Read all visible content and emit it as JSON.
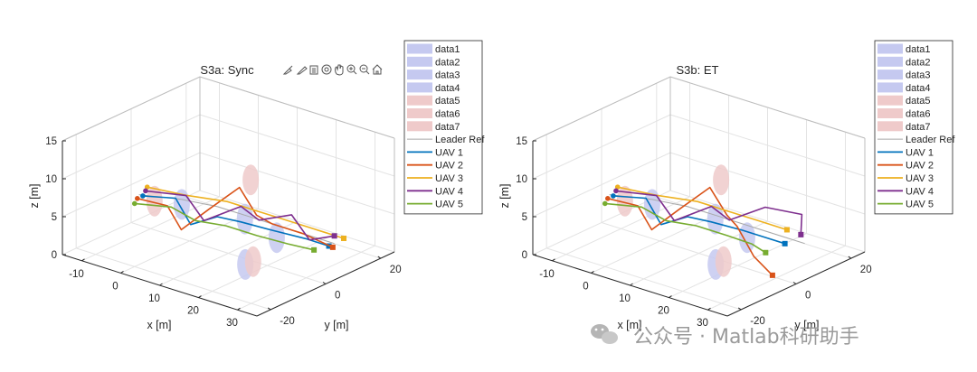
{
  "chart_data": [
    {
      "type": "line3d",
      "title": "S3a: Sync",
      "xlabel": "x [m]",
      "ylabel": "y [m]",
      "zlabel": "z [m]",
      "xlim": [
        -15,
        35
      ],
      "ylim": [
        -25,
        25
      ],
      "zlim": [
        0,
        15
      ],
      "xticks": [
        "-10",
        "0",
        "10",
        "20",
        "30"
      ],
      "yticks": [
        "-20",
        "0",
        "20"
      ],
      "zticks": [
        "0",
        "5",
        "10",
        "15"
      ],
      "grid": true,
      "legend": {
        "placement": "outside-right",
        "entries": [
          {
            "label": "data1",
            "kind": "patch",
            "color": "#c5c9f0"
          },
          {
            "label": "data2",
            "kind": "patch",
            "color": "#c5c9f0"
          },
          {
            "label": "data3",
            "kind": "patch",
            "color": "#c5c9f0"
          },
          {
            "label": "data4",
            "kind": "patch",
            "color": "#c5c9f0"
          },
          {
            "label": "data5",
            "kind": "patch",
            "color": "#efcaca"
          },
          {
            "label": "data6",
            "kind": "patch",
            "color": "#efcaca"
          },
          {
            "label": "data7",
            "kind": "patch",
            "color": "#efcaca"
          },
          {
            "label": "Leader Ref",
            "kind": "line",
            "color": "#a9a9a9"
          },
          {
            "label": "UAV 1",
            "kind": "line",
            "color": "#0072BD"
          },
          {
            "label": "UAV 2",
            "kind": "line",
            "color": "#D95319"
          },
          {
            "label": "UAV 3",
            "kind": "line",
            "color": "#EDB120"
          },
          {
            "label": "UAV 4",
            "kind": "line",
            "color": "#7E2F8E"
          },
          {
            "label": "UAV 5",
            "kind": "line",
            "color": "#77AC30"
          }
        ]
      },
      "obstacles": [
        {
          "label": "data1",
          "x": -2,
          "y": 0,
          "z": 4.5,
          "color": "#c5c9f0"
        },
        {
          "label": "data2",
          "x": 10,
          "y": 6,
          "z": 3.5,
          "color": "#c5c9f0"
        },
        {
          "label": "data3",
          "x": 21,
          "y": 2,
          "z": 3.5,
          "color": "#c5c9f0"
        },
        {
          "label": "data4",
          "x": 20,
          "y": -8,
          "z": 1.5,
          "color": "#c5c9f0"
        },
        {
          "label": "data5",
          "x": -9,
          "y": 0,
          "z": 3.8,
          "color": "#efcaca"
        },
        {
          "label": "data6",
          "x": 3,
          "y": 18,
          "z": 5.5,
          "color": "#efcaca"
        },
        {
          "label": "data7",
          "x": 22,
          "y": -8,
          "z": 2.2,
          "color": "#efcaca"
        }
      ],
      "series": [
        {
          "name": "Leader Ref",
          "color": "#a9a9a9",
          "width": 1,
          "x": [
            -13,
            -5,
            3,
            11,
            19,
            27,
            33
          ],
          "y": [
            0,
            4,
            6,
            6,
            6,
            6,
            6
          ],
          "z": [
            4,
            4,
            4,
            4,
            4,
            4,
            4
          ],
          "end": false
        },
        {
          "name": "UAV 1",
          "color": "#0072BD",
          "width": 1.6,
          "x": [
            -12,
            -5,
            1,
            5,
            11,
            19,
            27,
            33
          ],
          "y": [
            0,
            2,
            -1,
            3,
            3,
            3,
            4,
            4
          ],
          "z": [
            4,
            4.5,
            2.5,
            3.5,
            3.8,
            4,
            4,
            4
          ],
          "end": true
        },
        {
          "name": "UAV 2",
          "color": "#D95319",
          "width": 1.6,
          "x": [
            -12,
            -5,
            0,
            5,
            10,
            13,
            17,
            25,
            34
          ],
          "y": [
            -2,
            -1,
            -3,
            0,
            4,
            6,
            6,
            6,
            4
          ],
          "z": [
            4,
            4,
            2,
            5,
            8,
            4.5,
            4,
            4,
            4
          ],
          "end": true
        },
        {
          "name": "UAV 3",
          "color": "#EDB120",
          "width": 1.6,
          "x": [
            -13,
            -4,
            4,
            12,
            20,
            28,
            34
          ],
          "y": [
            3,
            5,
            8,
            8,
            8,
            8,
            8
          ],
          "z": [
            4.5,
            4.5,
            4.5,
            4.5,
            4.5,
            4.5,
            4.5
          ],
          "end": true
        },
        {
          "name": "UAV 4",
          "color": "#7E2F8E",
          "width": 1.6,
          "x": [
            -12,
            -3,
            3,
            9,
            15,
            22,
            28,
            33
          ],
          "y": [
            1,
            3,
            1,
            6,
            4,
            6,
            4,
            6
          ],
          "z": [
            4.5,
            5,
            3,
            5,
            4.5,
            6,
            4,
            5
          ],
          "end": true
        },
        {
          "name": "UAV 5",
          "color": "#77AC30",
          "width": 1.6,
          "x": [
            -12,
            -4,
            3,
            10,
            18,
            26,
            32
          ],
          "y": [
            -3,
            -1,
            -2,
            -1,
            -1,
            -1,
            0
          ],
          "z": [
            3.5,
            4,
            3.5,
            3.8,
            3.8,
            4,
            4
          ],
          "end": true
        }
      ]
    },
    {
      "type": "line3d",
      "title": "S3b: ET",
      "xlabel": "x [m]",
      "ylabel": "y [m]",
      "zlabel": "z [m]",
      "xlim": [
        -15,
        35
      ],
      "ylim": [
        -25,
        25
      ],
      "zlim": [
        0,
        15
      ],
      "xticks": [
        "-10",
        "0",
        "10",
        "20",
        "30"
      ],
      "yticks": [
        "-20",
        "0",
        "20"
      ],
      "zticks": [
        "0",
        "5",
        "10",
        "15"
      ],
      "grid": true,
      "legend": {
        "placement": "outside-right",
        "entries": [
          {
            "label": "data1",
            "kind": "patch",
            "color": "#c5c9f0"
          },
          {
            "label": "data2",
            "kind": "patch",
            "color": "#c5c9f0"
          },
          {
            "label": "data3",
            "kind": "patch",
            "color": "#c5c9f0"
          },
          {
            "label": "data4",
            "kind": "patch",
            "color": "#c5c9f0"
          },
          {
            "label": "data5",
            "kind": "patch",
            "color": "#efcaca"
          },
          {
            "label": "data6",
            "kind": "patch",
            "color": "#efcaca"
          },
          {
            "label": "data7",
            "kind": "patch",
            "color": "#efcaca"
          },
          {
            "label": "Leader Ref",
            "kind": "line",
            "color": "#a9a9a9"
          },
          {
            "label": "UAV 1",
            "kind": "line",
            "color": "#0072BD"
          },
          {
            "label": "UAV 2",
            "kind": "line",
            "color": "#D95319"
          },
          {
            "label": "UAV 3",
            "kind": "line",
            "color": "#EDB120"
          },
          {
            "label": "UAV 4",
            "kind": "line",
            "color": "#7E2F8E"
          },
          {
            "label": "UAV 5",
            "kind": "line",
            "color": "#77AC30"
          }
        ]
      },
      "obstacles": [
        {
          "label": "data1",
          "x": -2,
          "y": 0,
          "z": 4.5,
          "color": "#c5c9f0"
        },
        {
          "label": "data2",
          "x": 10,
          "y": 6,
          "z": 3.5,
          "color": "#c5c9f0"
        },
        {
          "label": "data3",
          "x": 21,
          "y": 2,
          "z": 3.5,
          "color": "#c5c9f0"
        },
        {
          "label": "data4",
          "x": 20,
          "y": -8,
          "z": 1.5,
          "color": "#c5c9f0"
        },
        {
          "label": "data5",
          "x": -9,
          "y": 0,
          "z": 3.8,
          "color": "#efcaca"
        },
        {
          "label": "data6",
          "x": 3,
          "y": 18,
          "z": 5.5,
          "color": "#efcaca"
        },
        {
          "label": "data7",
          "x": 22,
          "y": -8,
          "z": 2.2,
          "color": "#efcaca"
        }
      ],
      "series": [
        {
          "name": "Leader Ref",
          "color": "#a9a9a9",
          "width": 1,
          "x": [
            -13,
            -5,
            3,
            11,
            19,
            27,
            33
          ],
          "y": [
            0,
            4,
            6,
            6,
            6,
            6,
            6
          ],
          "z": [
            4,
            4,
            4,
            4,
            4,
            4,
            4
          ],
          "end": false
        },
        {
          "name": "UAV 1",
          "color": "#0072BD",
          "width": 1.6,
          "x": [
            -12,
            -5,
            1,
            5,
            11,
            19,
            25,
            30
          ],
          "y": [
            0,
            2,
            -1,
            3,
            3,
            3,
            3,
            3
          ],
          "z": [
            4,
            4.5,
            2.5,
            3.5,
            3.8,
            4,
            4,
            4
          ],
          "end": true
        },
        {
          "name": "UAV 2",
          "color": "#D95319",
          "width": 1.6,
          "x": [
            -12,
            -5,
            0,
            5,
            10,
            13,
            17,
            27,
            36
          ],
          "y": [
            -2,
            -1,
            -3,
            0,
            4,
            6,
            4,
            -4,
            -10
          ],
          "z": [
            4,
            4,
            2,
            5,
            8,
            4.5,
            4,
            3,
            3
          ],
          "end": true
        },
        {
          "name": "UAV 3",
          "color": "#EDB120",
          "width": 1.6,
          "x": [
            -13,
            -4,
            4,
            12,
            20,
            27
          ],
          "y": [
            3,
            5,
            8,
            8,
            8,
            8
          ],
          "z": [
            4.5,
            4.5,
            4.5,
            4.5,
            4.5,
            4.5
          ],
          "end": true
        },
        {
          "name": "UAV 4",
          "color": "#7E2F8E",
          "width": 1.6,
          "x": [
            -12,
            -3,
            3,
            9,
            15,
            20,
            28,
            32
          ],
          "y": [
            1,
            3,
            1,
            6,
            4,
            10,
            12,
            6
          ],
          "z": [
            4.5,
            5,
            3,
            5,
            4.5,
            6,
            6,
            5
          ],
          "end": true
        },
        {
          "name": "UAV 5",
          "color": "#77AC30",
          "width": 1.6,
          "x": [
            -12,
            -4,
            3,
            10,
            18,
            25,
            30
          ],
          "y": [
            -3,
            -1,
            -2,
            -1,
            -1,
            -2,
            -4
          ],
          "z": [
            3.5,
            4,
            3.5,
            3.8,
            3.8,
            4,
            4
          ],
          "end": true
        }
      ]
    }
  ],
  "toolbar": {
    "icons": [
      "brush-icon",
      "data-tips-icon",
      "rotate-3d-icon",
      "pan-icon",
      "zoom-in-icon",
      "zoom-out-icon",
      "home-icon"
    ]
  },
  "watermark": "公众号 · Matlab科研助手"
}
